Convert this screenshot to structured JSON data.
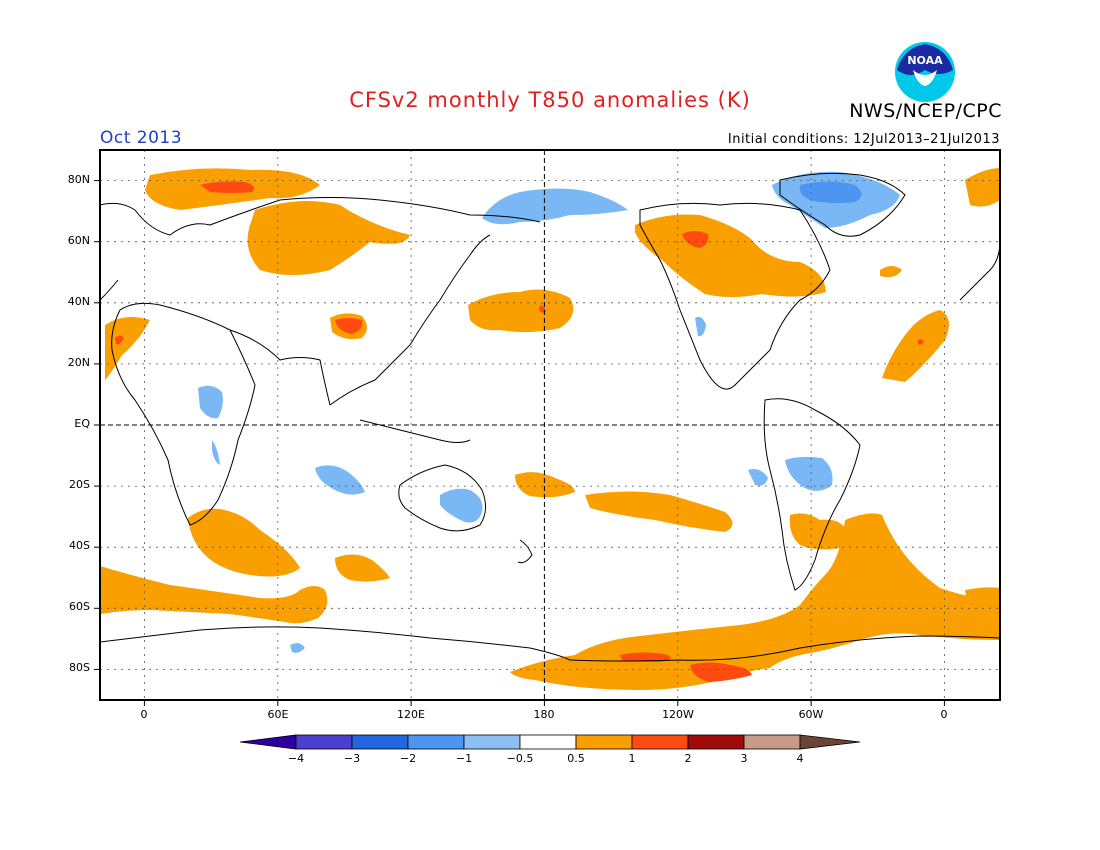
{
  "header": {
    "title": "CFSv2 monthly T850 anomalies (K)",
    "org": "NWS/NCEP/CPC",
    "month": "Oct 2013",
    "initial_conditions": "Initial conditions: 12Jul2013–21Jul2013",
    "logo_text": "NOAA"
  },
  "axes": {
    "lat_labels": [
      "80N",
      "60N",
      "40N",
      "20N",
      "EQ",
      "20S",
      "40S",
      "60S",
      "80S"
    ],
    "lat_values": [
      80,
      60,
      40,
      20,
      0,
      -20,
      -40,
      -60,
      -80
    ],
    "lon_labels": [
      "0",
      "60E",
      "120E",
      "180",
      "120W",
      "60W",
      "0"
    ],
    "lon_values": [
      0,
      60,
      120,
      180,
      240,
      300,
      360
    ],
    "lon_range": [
      -20,
      385
    ],
    "lat_range": [
      -90,
      90
    ]
  },
  "colorbar": {
    "labels": [
      "−4",
      "−3",
      "−2",
      "−1",
      "−0.5",
      "0.5",
      "1",
      "2",
      "3",
      "4"
    ],
    "colors": [
      "#2f00a0",
      "#4c3fd0",
      "#2266e0",
      "#4c95f0",
      "#8cc0f5",
      "#ffffff",
      "#f9a000",
      "#ff4a10",
      "#a00a0a",
      "#c89a88",
      "#6b4533"
    ]
  },
  "colors": {
    "warm1": "#f9a000",
    "warm2": "#ff4a10",
    "cool1": "#7ab8f5",
    "cool2": "#4c95f0"
  }
}
